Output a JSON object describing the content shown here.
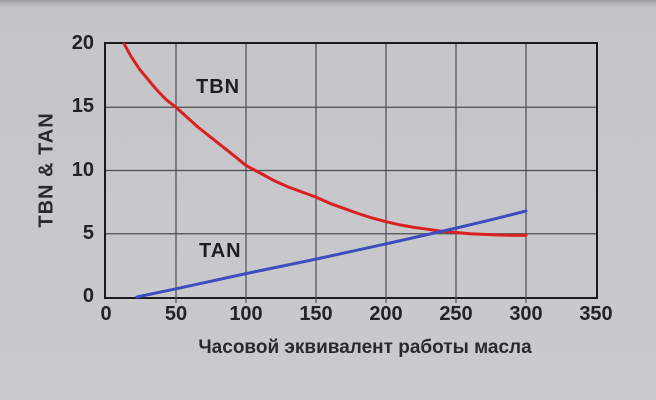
{
  "chart_data": {
    "type": "line",
    "title": "",
    "xlabel": "Часовой эквивалент работы масла",
    "ylabel": "TBN & TAN",
    "xlim": [
      0,
      350
    ],
    "ylim": [
      0,
      20
    ],
    "x_ticks": [
      0,
      50,
      100,
      150,
      200,
      250,
      300,
      350
    ],
    "y_ticks": [
      0,
      5,
      10,
      15,
      20
    ],
    "grid": true,
    "legend_position": "inline-labels",
    "colors": {
      "tbn_line": "#d92121",
      "tan_line": "#3d4dbe",
      "grid_line": "#4c4c52",
      "border": "#1a1a1c",
      "background": "#c8c8cc"
    },
    "series": [
      {
        "name": "TBN",
        "color": "#d92121",
        "points": [
          [
            13,
            20
          ],
          [
            18,
            19.0
          ],
          [
            24,
            18.0
          ],
          [
            30,
            17.2
          ],
          [
            36,
            16.4
          ],
          [
            43,
            15.6
          ],
          [
            50,
            15.0
          ],
          [
            58,
            14.2
          ],
          [
            66,
            13.4
          ],
          [
            74,
            12.7
          ],
          [
            82,
            12.0
          ],
          [
            90,
            11.3
          ],
          [
            100,
            10.4
          ],
          [
            110,
            9.8
          ],
          [
            120,
            9.2
          ],
          [
            130,
            8.7
          ],
          [
            140,
            8.3
          ],
          [
            150,
            7.9
          ],
          [
            160,
            7.4
          ],
          [
            170,
            7.0
          ],
          [
            180,
            6.6
          ],
          [
            190,
            6.25
          ],
          [
            200,
            5.95
          ],
          [
            210,
            5.7
          ],
          [
            220,
            5.5
          ],
          [
            230,
            5.35
          ],
          [
            240,
            5.2
          ],
          [
            250,
            5.1
          ],
          [
            260,
            5.0
          ],
          [
            270,
            4.95
          ],
          [
            280,
            4.9
          ],
          [
            290,
            4.88
          ],
          [
            300,
            4.87
          ]
        ]
      },
      {
        "name": "TAN",
        "color": "#3d4dbe",
        "points": [
          [
            22,
            0
          ],
          [
            50,
            0.65
          ],
          [
            100,
            1.85
          ],
          [
            150,
            3.0
          ],
          [
            200,
            4.2
          ],
          [
            250,
            5.45
          ],
          [
            275,
            6.1
          ],
          [
            300,
            6.8
          ]
        ]
      }
    ],
    "annotations": [
      {
        "text": "TBN",
        "x": 65,
        "y": 16.5
      },
      {
        "text": "TAN",
        "x": 67,
        "y": 3.3
      }
    ]
  }
}
